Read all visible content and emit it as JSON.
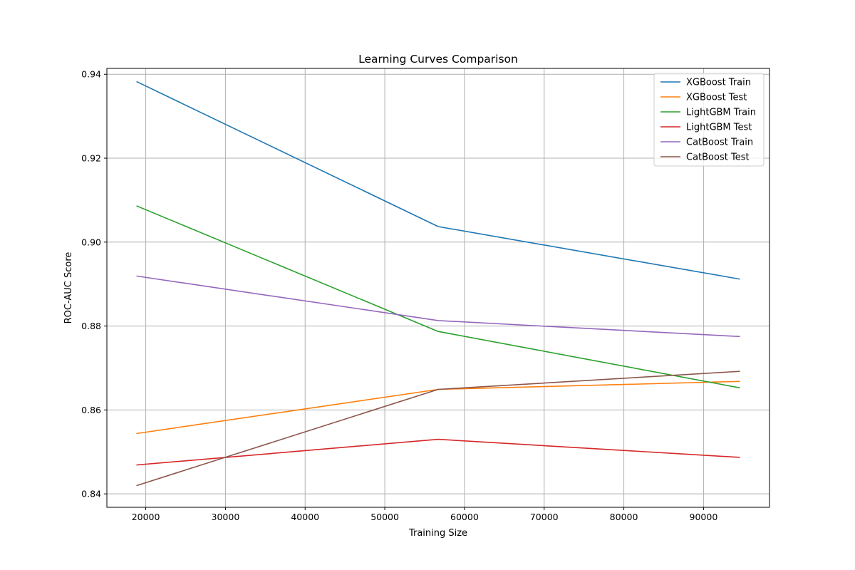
{
  "chart_data": {
    "type": "line",
    "title": "Learning Curves Comparison",
    "xlabel": "Training Size",
    "ylabel": "ROC-AUC Score",
    "x": [
      18900,
      56700,
      94500
    ],
    "xlim": [
      15120,
      98280
    ],
    "ylim": [
      0.8368,
      0.9414
    ],
    "xticks": [
      20000,
      30000,
      40000,
      50000,
      60000,
      70000,
      80000,
      90000
    ],
    "yticks": [
      0.84,
      0.86,
      0.88,
      0.9,
      0.92,
      0.94
    ],
    "ytick_labels": [
      "0.84",
      "0.86",
      "0.88",
      "0.90",
      "0.92",
      "0.94"
    ],
    "grid": true,
    "legend_position": "top-right",
    "series": [
      {
        "name": "XGBoost Train",
        "color": "#1f77b4",
        "values": [
          0.9382,
          0.9037,
          0.8912
        ]
      },
      {
        "name": "XGBoost Test",
        "color": "#ff7f0e",
        "values": [
          0.8544,
          0.8649,
          0.8668
        ]
      },
      {
        "name": "LightGBM Train",
        "color": "#2ca02c",
        "values": [
          0.9086,
          0.8787,
          0.8653
        ]
      },
      {
        "name": "LightGBM Test",
        "color": "#d62728",
        "values": [
          0.8469,
          0.853,
          0.8487
        ]
      },
      {
        "name": "CatBoost Train",
        "color": "#9467bd",
        "values": [
          0.8919,
          0.8813,
          0.8775
        ]
      },
      {
        "name": "CatBoost Test",
        "color": "#8c564b",
        "values": [
          0.842,
          0.8649,
          0.8692
        ]
      }
    ]
  }
}
